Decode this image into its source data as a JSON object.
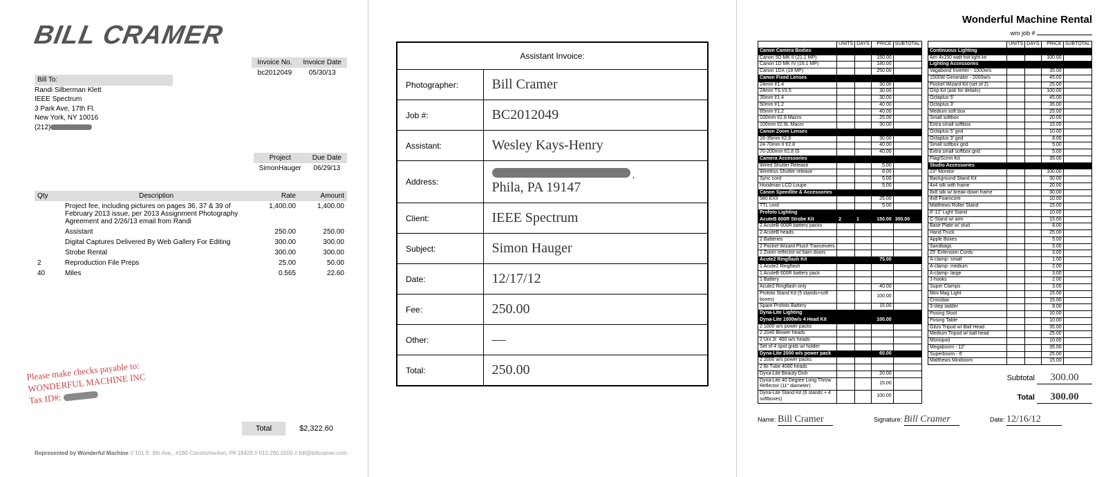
{
  "invoice": {
    "logo_text": "BILL CRAMER",
    "bill_to_label": "Bill To:",
    "bill_to": {
      "name": "Randi Silberman Klett",
      "company": "IEEE Spectrum",
      "addr1": "3 Park Ave, 17th Fl.",
      "addr2": "New York, NY 10016",
      "phone_prefix": "(212)"
    },
    "meta1": {
      "no_label": "Invoice No.",
      "no": "bc2012049",
      "date_label": "Invoice Date",
      "date": "05/30/13"
    },
    "meta2": {
      "proj_label": "Project",
      "proj": "SimonHauger",
      "due_label": "Due Date",
      "due": "06/29/13"
    },
    "cols": {
      "qty": "Qty",
      "desc": "Description",
      "rate": "Rate",
      "amt": "Amount"
    },
    "lines": [
      {
        "qty": "",
        "desc": "Project fee, including pictures on pages 36, 37 & 39 of February 2013 issue, per 2013 Assignment Photography Agreement and 2/26/13 email from Randi",
        "rate": "1,400.00",
        "amt": "1,400.00"
      },
      {
        "qty": "",
        "desc": "Assistant",
        "rate": "250.00",
        "amt": "250.00"
      },
      {
        "qty": "",
        "desc": "Digital Captures Delivered By Web Gallery For Editing",
        "rate": "300.00",
        "amt": "300.00"
      },
      {
        "qty": "",
        "desc": "Strobe Rental",
        "rate": "300.00",
        "amt": "300.00"
      },
      {
        "qty": "2",
        "desc": "Reproduction File Preps",
        "rate": "25.00",
        "amt": "50.00"
      },
      {
        "qty": "40",
        "desc": "Miles",
        "rate": "0.565",
        "amt": "22.60"
      }
    ],
    "stamp": {
      "l1": "Please make checks payable to:",
      "l2": "WONDERFUL MACHINE INC",
      "l3": "Tax ID#:"
    },
    "total_label": "Total",
    "total": "$2,322.60",
    "foot_left": "Represented by Wonderful Machine",
    "foot_right": "// 101 E. 8th Ave., #180 Conshohocken, PA 19428  // 610.260.0200  // bill@billcramer.com"
  },
  "assistant_form": {
    "title": "Assistant Invoice:",
    "rows": [
      {
        "label": "Photographer:",
        "value": "Bill Cramer"
      },
      {
        "label": "Job #:",
        "value": "BC2012049"
      },
      {
        "label": "Assistant:",
        "value": "Wesley Kays-Henry"
      },
      {
        "label": "Address:",
        "value": "Phila, PA  19147",
        "redacted_first_line": true
      },
      {
        "label": "Client:",
        "value": "IEEE Spectrum"
      },
      {
        "label": "Subject:",
        "value": "Simon Hauger"
      },
      {
        "label": "Date:",
        "value": "12/17/12"
      },
      {
        "label": "Fee:",
        "value": "250.00"
      },
      {
        "label": "Other:",
        "value": "—"
      },
      {
        "label": "Total:",
        "value": "250.00"
      }
    ]
  },
  "rental": {
    "title": "Wonderful Machine Rental",
    "job_label": "wm job #",
    "headers": [
      "UNITS",
      "DAYS",
      "PRICE",
      "SUBTOTAL"
    ],
    "left_sections": [
      {
        "name": "Canon Camera Bodies",
        "rows": [
          {
            "n": "Canon 5D MK II (21.1 MP)",
            "p": "150.00"
          },
          {
            "n": "Canon 1D MK IV (16.1 MP)",
            "p": "180.00"
          },
          {
            "n": "Canon 1DX (18 MP)",
            "p": "250.00"
          }
        ]
      },
      {
        "name": "Canon Fixed Lenses",
        "rows": [
          {
            "n": "24mm f/1.4",
            "p": "30.00"
          },
          {
            "n": "24mm TS f/3.5",
            "p": "30.00"
          },
          {
            "n": "35mm f/1.4",
            "p": "30.00"
          },
          {
            "n": "50mm f/1.2",
            "p": "40.00"
          },
          {
            "n": "85mm f/1.2",
            "p": "40.00"
          },
          {
            "n": "100mm f/2.8 Macro",
            "p": "25.00"
          },
          {
            "n": "100mm f/2.8L Macro",
            "p": "30.00"
          }
        ]
      },
      {
        "name": "Canon Zoom Lenses",
        "rows": [
          {
            "n": "16-35mm f/2.8",
            "p": "30.00"
          },
          {
            "n": "24-70mm II f/2.8",
            "p": "40.00"
          },
          {
            "n": "70-200mm f/2.8 IS",
            "p": "40.00"
          }
        ]
      },
      {
        "name": "Camera Accessories",
        "rows": [
          {
            "n": "Wired Shutter Release",
            "p": "5.00"
          },
          {
            "n": "Wireless Shutter release",
            "p": "8.00"
          },
          {
            "n": "Sync cord",
            "p": "5.00"
          },
          {
            "n": "Hoodman LCD Loupe",
            "p": "5.00"
          }
        ]
      },
      {
        "name": "Canon Speedlite & Accessories",
        "rows": [
          {
            "n": "580 EXII",
            "p": "25.00"
          },
          {
            "n": "TTL cord",
            "p": "5.00"
          }
        ]
      },
      {
        "name": "Profoto Lighting",
        "rows": []
      },
      {
        "name": "AcuteB 600R Strobe Kit",
        "bold": true,
        "rows": [
          {
            "n": "",
            "u": "2",
            "d": "1",
            "p": "150.00",
            "s": "300.00",
            "header_row": true
          },
          {
            "n": "2 AcuteB 600R battery packs",
            "p": ""
          },
          {
            "n": "2 AcuteB heads",
            "p": ""
          },
          {
            "n": "2 Batteries",
            "p": ""
          },
          {
            "n": "2 Pocket Wizard PlusII Tranceivers",
            "p": ""
          },
          {
            "n": "1 Zoom reflector w/ barn doors",
            "p": ""
          }
        ]
      },
      {
        "name": "Acute2 Ringflash Kit",
        "bold": true,
        "rows": [
          {
            "n": "",
            "p": "75.00",
            "header_row": true
          },
          {
            "n": "1 Acute2 Ringflash",
            "p": ""
          },
          {
            "n": "1 AcuteB 600R battery pack",
            "p": ""
          },
          {
            "n": "1 Battery",
            "p": ""
          },
          {
            "n": "Acute2 Ringflash only",
            "p": "40.00"
          },
          {
            "n": "Profoto Stand Kit (5 stands+soft boxes)",
            "p": "100.00"
          },
          {
            "n": "Spare Profoto Battery",
            "p": "15.00"
          }
        ]
      },
      {
        "name": "Dyna-Lite Lighting",
        "rows": []
      },
      {
        "name": "Dyna-Lite 1000w/s 4 Head Kit",
        "bold": true,
        "rows": [
          {
            "n": "",
            "p": "100.00",
            "header_row": true
          },
          {
            "n": "2 1000 w/s power packs",
            "p": ""
          },
          {
            "n": "2 2040 Blower heads",
            "p": ""
          },
          {
            "n": "2 Uni Jr. 400 w/s heads",
            "p": ""
          },
          {
            "n": "Set of 4 spot grids w/ holder",
            "p": ""
          }
        ]
      },
      {
        "name": "Dyna-Lite 2000 w/s power pack",
        "bold": true,
        "rows": [
          {
            "n": "",
            "p": "60.00",
            "header_row": true
          },
          {
            "n": "2 2000 w/s power packs",
            "p": ""
          },
          {
            "n": "2 Bi-Tube 4080 heads",
            "p": ""
          },
          {
            "n": "Dyna-Lite Beauty Dish",
            "p": "20.00"
          },
          {
            "n": "Dyna-Lite 40 Degree Long Throw Reflector (11\" diameter)",
            "p": "15.00"
          },
          {
            "n": "Dyna-Lite Stand Kit (6 stands + 4 softboxes)",
            "p": "100.00"
          }
        ]
      }
    ],
    "right_sections": [
      {
        "name": "Continuous Lighting",
        "rows": [
          {
            "n": "Arri 4x150 watt hot light kit",
            "p": "100.00"
          }
        ]
      },
      {
        "name": "Lighting Accessories",
        "rows": [
          {
            "n": "Vagabond Inverter - 1000w/s",
            "p": "35.00"
          },
          {
            "n": "1500W Generator - 2000w/s",
            "p": "45.00"
          },
          {
            "n": "Pocket Wizard Kit (set of 2)",
            "p": "25.00"
          },
          {
            "n": "Grip Kit (ask for details)",
            "p": "100.00"
          },
          {
            "n": "Octaplus 5'",
            "p": "45.00"
          },
          {
            "n": "Octaplus 3'",
            "p": "35.00"
          },
          {
            "n": "Medium soft box",
            "p": "25.00"
          },
          {
            "n": "Small softbox",
            "p": "20.00"
          },
          {
            "n": "Extra small softbox",
            "p": "15.00"
          },
          {
            "n": "Octaplus 5' grid",
            "p": "10.00"
          },
          {
            "n": "Octaplus 3' grid",
            "p": "8.00"
          },
          {
            "n": "Small softbox grid",
            "p": "5.00"
          },
          {
            "n": "Extra small softbox grid",
            "p": "5.00"
          },
          {
            "n": "Flag/Scrim Kit",
            "p": "35.00"
          }
        ]
      },
      {
        "name": "Studio Accessories",
        "rows": [
          {
            "n": "23\" Monitor",
            "p": "100.00"
          },
          {
            "n": "Background Stand Kit",
            "p": "30.00"
          },
          {
            "n": "4x4 silk with frame",
            "p": "20.00"
          },
          {
            "n": "8x8 silk w/ break-down frame",
            "p": "30.00"
          },
          {
            "n": "4x8 Foamcore",
            "p": "10.00"
          },
          {
            "n": "Matthews Roller Stand",
            "p": "15.00"
          },
          {
            "n": "8'-12' Light Stand",
            "p": "10.00"
          },
          {
            "n": "C-Stand w/ arm",
            "p": "15.00"
          },
          {
            "n": "Base Plate w/ stud",
            "p": "8.00"
          },
          {
            "n": "Hand Truck",
            "p": "25.00"
          },
          {
            "n": "Apple Boxes",
            "p": "5.00"
          },
          {
            "n": "Sandbags",
            "p": "5.00"
          },
          {
            "n": "25' Extension Cords",
            "p": "3.00"
          },
          {
            "n": "A-clamp- small",
            "p": "1.00"
          },
          {
            "n": "A-clamp- medium",
            "p": "2.00"
          },
          {
            "n": "A-clamp- large",
            "p": "3.00"
          },
          {
            "n": "J-hooks",
            "p": "2.00"
          },
          {
            "n": "Super Clamps",
            "p": "3.00"
          },
          {
            "n": "Mini Mag Light",
            "p": "15.00"
          },
          {
            "n": "Crossbar",
            "p": "15.00"
          },
          {
            "n": "3-step ladder",
            "p": "8.00"
          },
          {
            "n": "Posing Stool",
            "p": "10.00"
          },
          {
            "n": "Posing Table",
            "p": "10.00"
          },
          {
            "n": "Gitzo Tripod w/ Ball Head",
            "p": "35.00"
          },
          {
            "n": "Medium Tripod w/ ball head",
            "p": "25.00"
          },
          {
            "n": "Monopod",
            "p": "10.00"
          },
          {
            "n": "Megaboom - 12'",
            "p": "35.00"
          },
          {
            "n": "Superboom - 6'",
            "p": "25.00"
          },
          {
            "n": "Matthews Miniboom",
            "p": "15.00"
          }
        ]
      }
    ],
    "subtotal_label": "Subtotal",
    "subtotal": "300.00",
    "total_label": "Total",
    "total": "300.00",
    "sig": {
      "name_label": "Name:",
      "name": "Bill Cramer",
      "sig_label": "Signature:",
      "sig": "Bill Cramer",
      "date_label": "Date:",
      "date": "12/16/12"
    }
  }
}
